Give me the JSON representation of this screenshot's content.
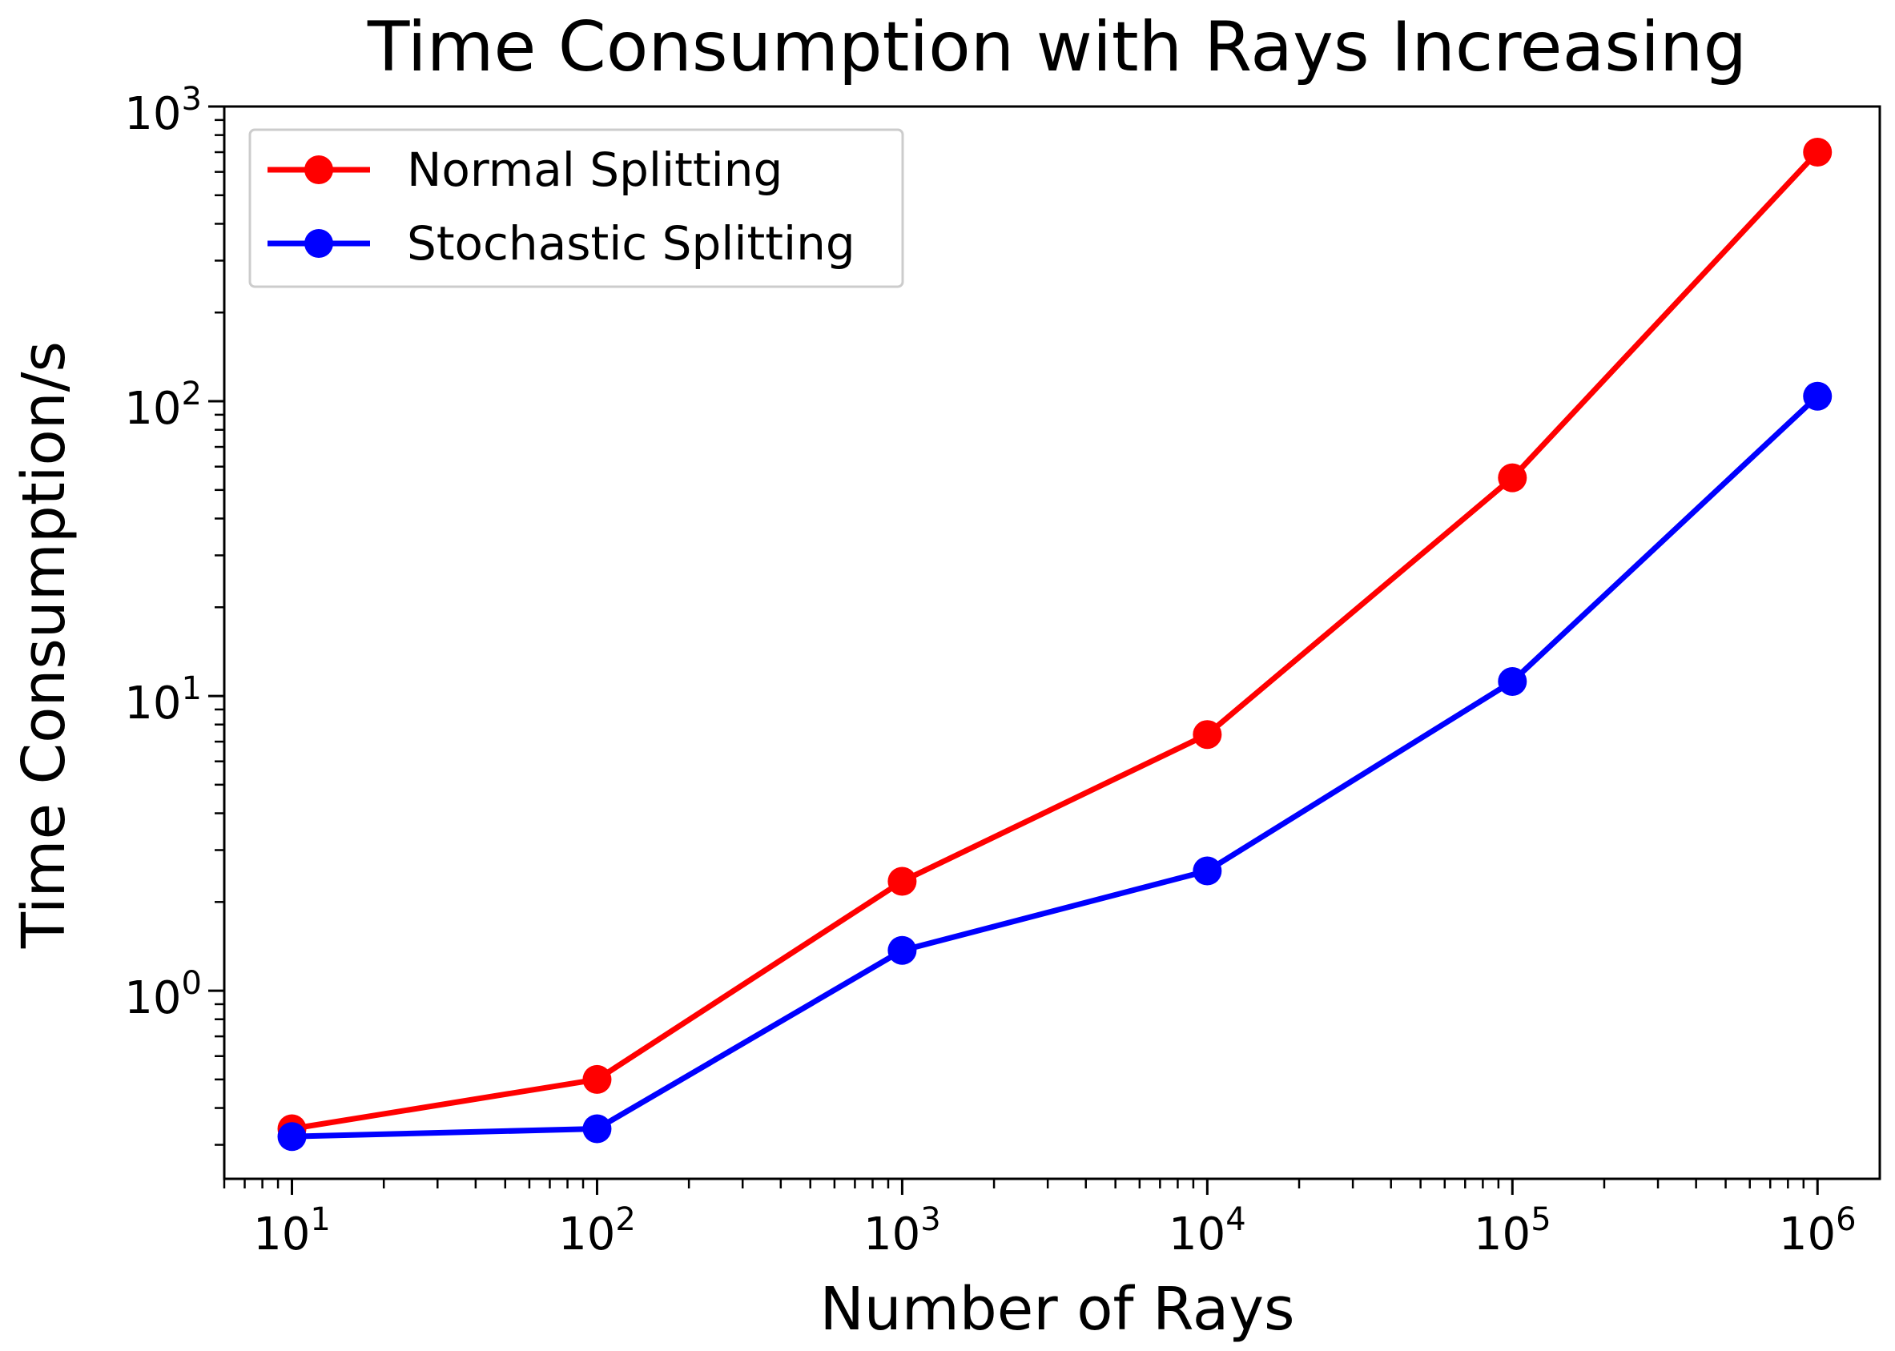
{
  "chart_data": {
    "type": "line",
    "title": "Time Consumption with Rays Increasing",
    "xlabel": "Number of Rays",
    "ylabel": "Time Consumption/s",
    "xscale": "log",
    "yscale": "log",
    "xlim": [
      6,
      1600000
    ],
    "ylim": [
      0.23,
      1000
    ],
    "x": [
      10,
      100,
      1000,
      10000,
      100000,
      1000000
    ],
    "series": [
      {
        "name": "Normal Splitting",
        "color": "#ff0000",
        "values": [
          0.34,
          0.5,
          2.35,
          7.4,
          55,
          700
        ]
      },
      {
        "name": "Stochastic Splitting",
        "color": "#0000ff",
        "values": [
          0.32,
          0.34,
          1.37,
          2.55,
          11.2,
          104
        ]
      }
    ],
    "x_ticks": [
      {
        "base": "10",
        "exp": "1",
        "value": 10
      },
      {
        "base": "10",
        "exp": "2",
        "value": 100
      },
      {
        "base": "10",
        "exp": "3",
        "value": 1000
      },
      {
        "base": "10",
        "exp": "4",
        "value": 10000
      },
      {
        "base": "10",
        "exp": "5",
        "value": 100000
      },
      {
        "base": "10",
        "exp": "6",
        "value": 1000000
      }
    ],
    "y_ticks": [
      {
        "base": "10",
        "exp": "0",
        "value": 1
      },
      {
        "base": "10",
        "exp": "1",
        "value": 10
      },
      {
        "base": "10",
        "exp": "2",
        "value": 100
      },
      {
        "base": "10",
        "exp": "3",
        "value": 1000
      }
    ],
    "legend_position": "top-left",
    "grid": false
  }
}
